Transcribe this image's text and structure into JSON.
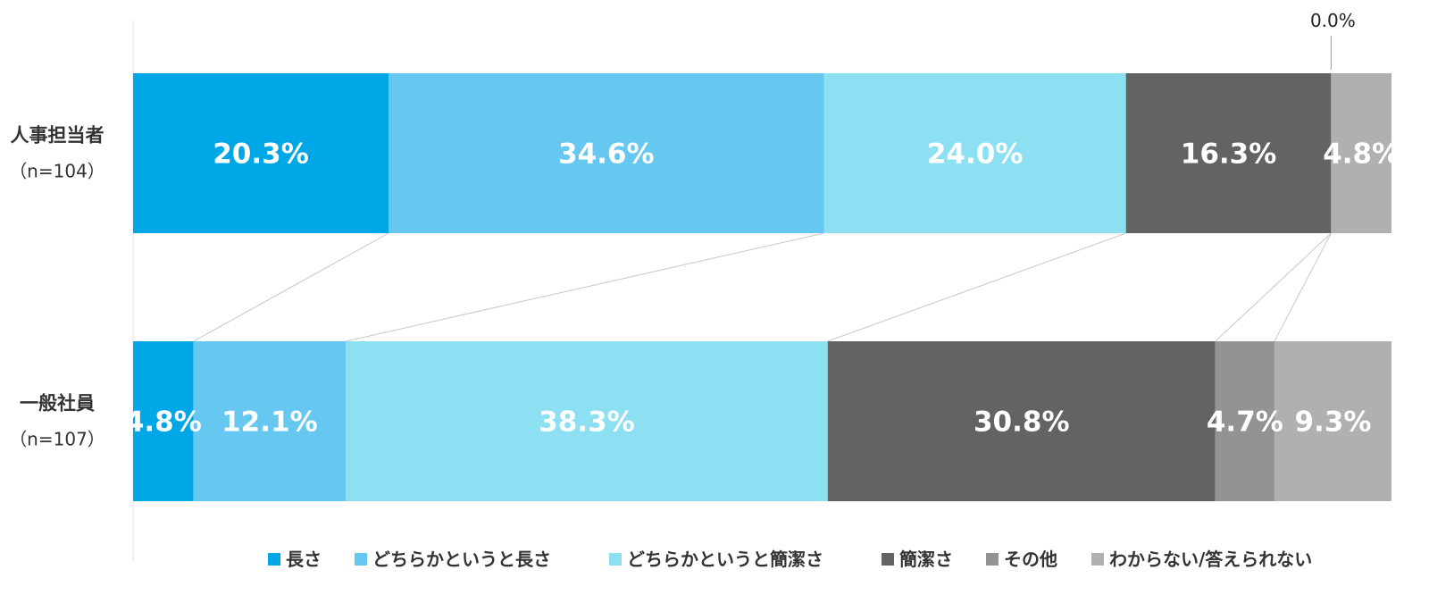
{
  "chart_data": {
    "type": "bar",
    "orientation": "horizontal",
    "stacked": "100%",
    "categories": [
      {
        "name": "人事担当者",
        "n": "（n=104）"
      },
      {
        "name": "一般社員",
        "n": "（n=107）"
      }
    ],
    "series": [
      {
        "name": "長さ",
        "color": "#00a7e6",
        "values": [
          20.3,
          4.8
        ],
        "labels": [
          "20.3%",
          "4.8%"
        ]
      },
      {
        "name": "どちらかというと長さ",
        "color": "#66c8f0",
        "values": [
          34.6,
          12.1
        ],
        "labels": [
          "34.6%",
          "12.1%"
        ]
      },
      {
        "name": "どちらかというと簡潔さ",
        "color": "#8ddff2",
        "values": [
          24.0,
          38.3
        ],
        "labels": [
          "24.0%",
          "38.3%"
        ]
      },
      {
        "name": "簡潔さ",
        "color": "#636363",
        "values": [
          16.3,
          30.8
        ],
        "labels": [
          "16.3%",
          "30.8%"
        ]
      },
      {
        "name": "その他",
        "color": "#939393",
        "values": [
          0.0,
          4.7
        ],
        "labels": [
          "0.0%",
          "4.7%"
        ]
      },
      {
        "name": "わからない/答えられない",
        "color": "#b0b0b0",
        "values": [
          4.8,
          9.3
        ],
        "labels": [
          "4.8%",
          "9.3%"
        ]
      }
    ],
    "xlim": [
      0,
      100
    ],
    "series_lines": true,
    "legend_position": "bottom",
    "grid": false
  }
}
